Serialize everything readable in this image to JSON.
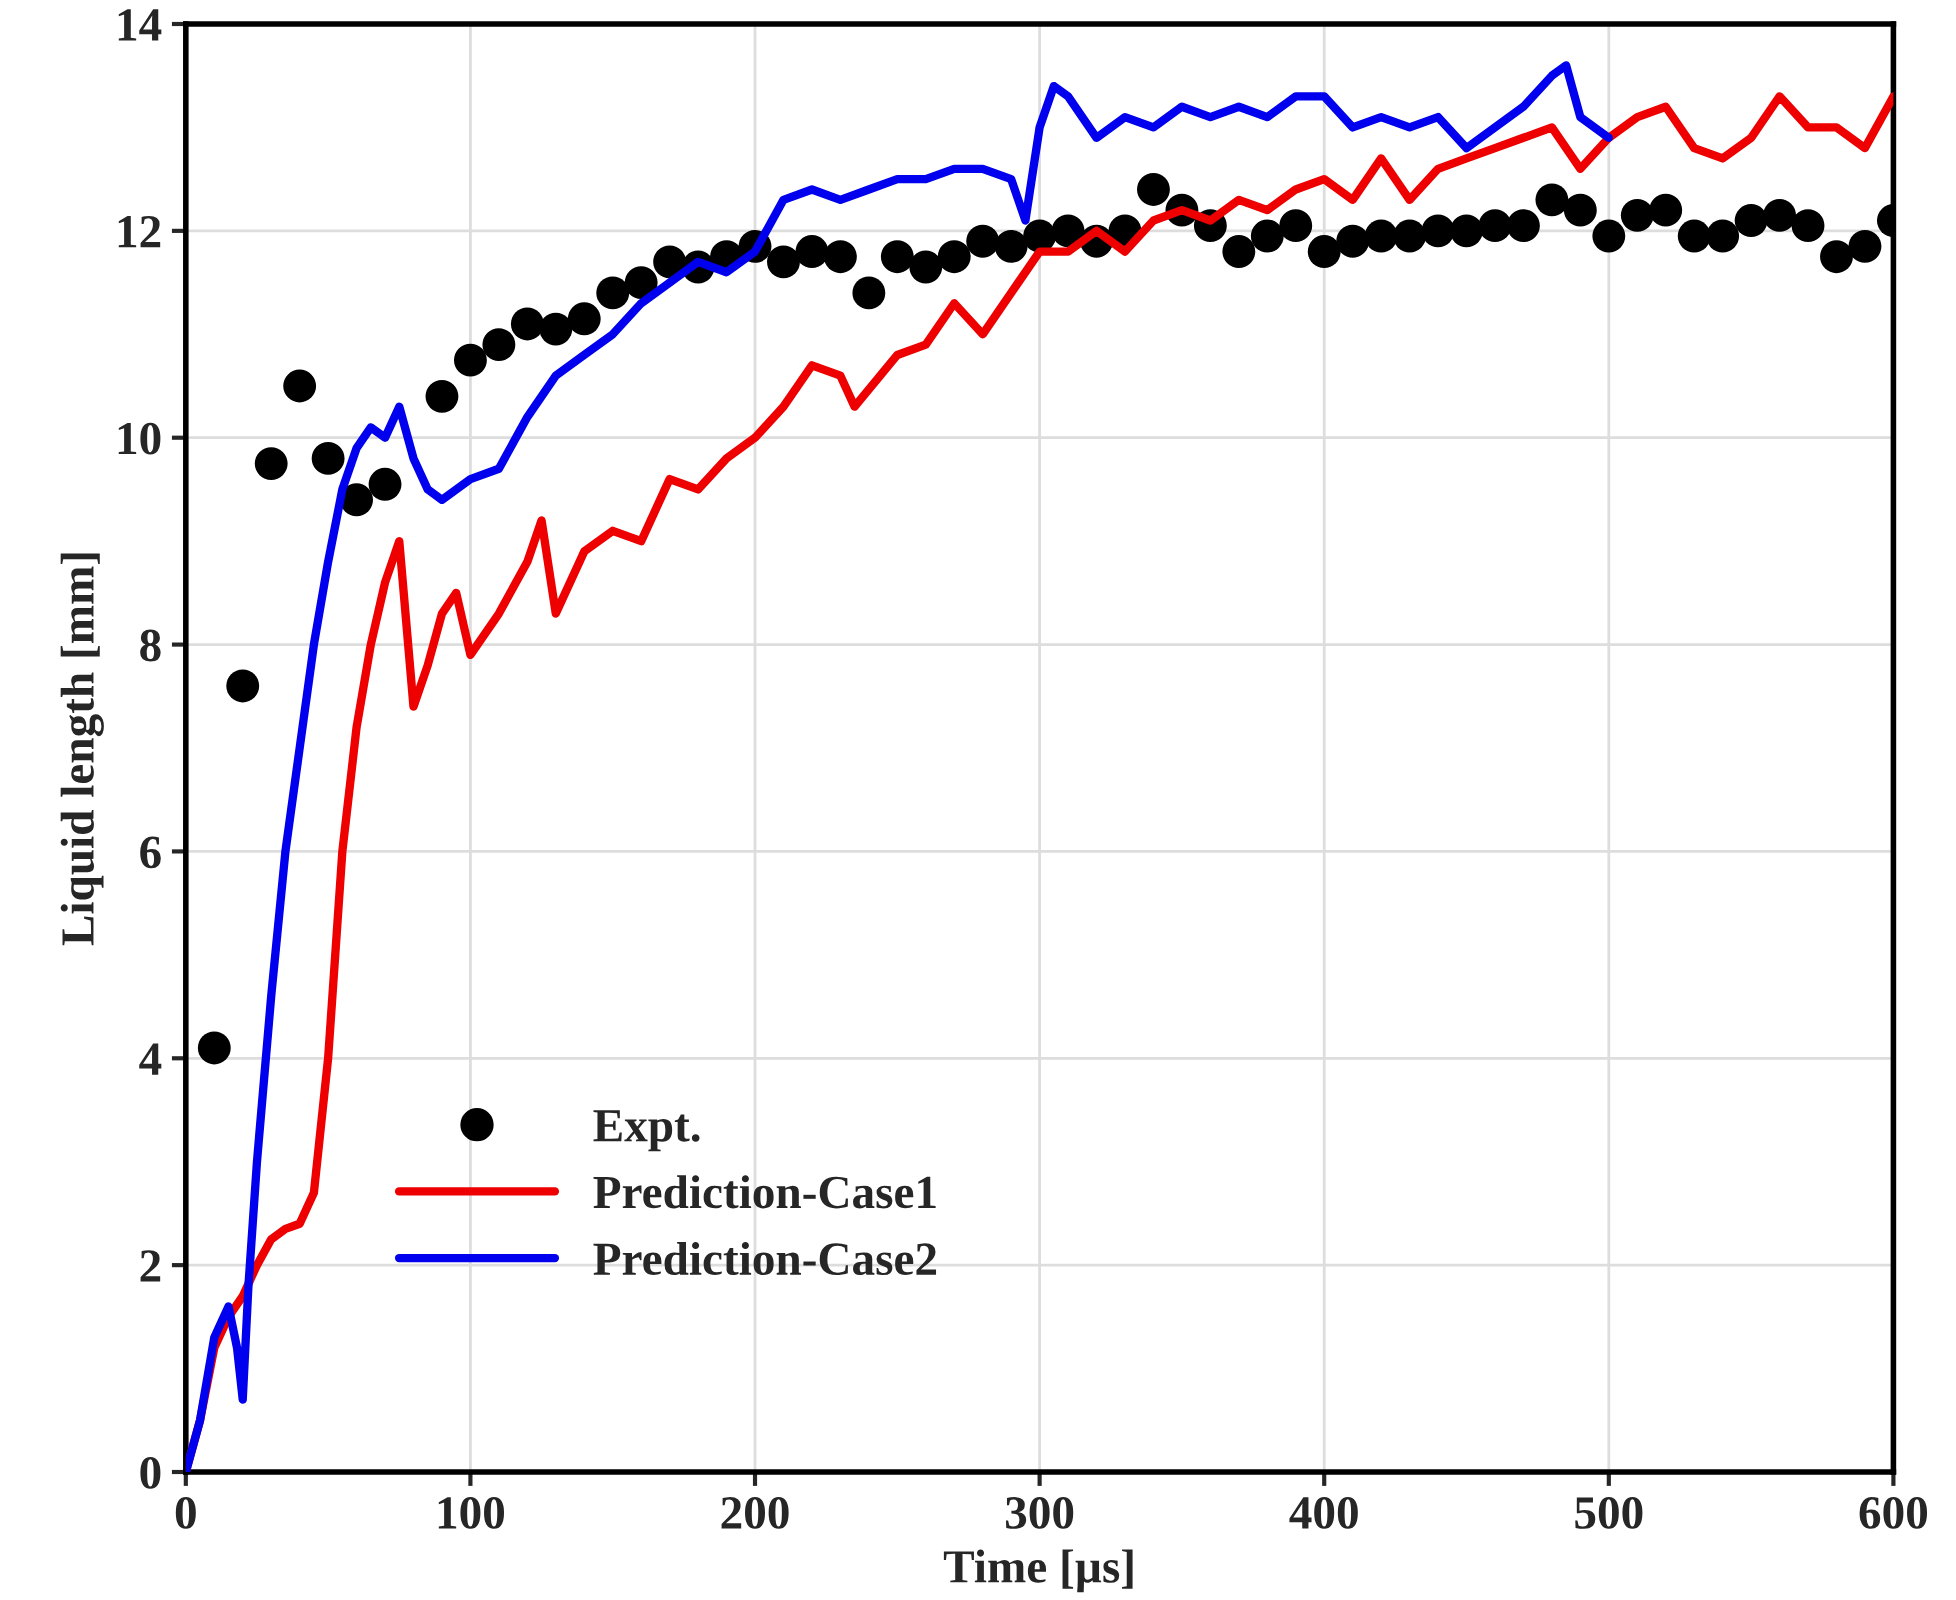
{
  "chart_data": {
    "type": "line",
    "xlabel": "Time [µs]",
    "ylabel": "Liquid length [mm]",
    "xlim": [
      0,
      600
    ],
    "xticks": [
      0,
      100,
      200,
      300,
      400,
      500,
      600
    ],
    "ylim": [
      0,
      14
    ],
    "yticks": [
      0,
      2,
      4,
      6,
      8,
      10,
      12,
      14
    ],
    "grid": true,
    "legend": "bottom left",
    "series": [
      {
        "name": "Expt.",
        "type": "scatter",
        "marker": "circle",
        "color": "#000000",
        "x": [
          10,
          20,
          30,
          40,
          50,
          60,
          70,
          90,
          100,
          110,
          120,
          130,
          140,
          150,
          160,
          170,
          180,
          190,
          200,
          210,
          220,
          230,
          240,
          250,
          260,
          270,
          280,
          290,
          300,
          310,
          320,
          330,
          340,
          350,
          360,
          370,
          380,
          390,
          400,
          410,
          420,
          430,
          440,
          450,
          460,
          470,
          480,
          490,
          500,
          510,
          520,
          530,
          540,
          550,
          560,
          570,
          580,
          590,
          600
        ],
        "values": [
          4.1,
          7.6,
          9.75,
          10.5,
          9.8,
          9.4,
          9.55,
          10.4,
          10.75,
          10.9,
          11.1,
          11.05,
          11.15,
          11.4,
          11.5,
          11.7,
          11.65,
          11.75,
          11.85,
          11.7,
          11.8,
          11.75,
          11.4,
          11.75,
          11.65,
          11.75,
          11.9,
          11.85,
          11.95,
          12.0,
          11.9,
          12.0,
          12.4,
          12.2,
          12.05,
          11.8,
          11.95,
          12.05,
          11.8,
          11.9,
          11.95,
          11.95,
          12.0,
          12.0,
          12.05,
          12.05,
          12.3,
          12.2,
          11.95,
          12.15,
          12.2,
          11.95,
          11.95,
          12.1,
          12.15,
          12.05,
          11.75,
          11.85,
          12.1
        ]
      },
      {
        "name": "Prediction-Case1",
        "color": "#ee0000",
        "x": [
          0,
          5,
          10,
          15,
          20,
          25,
          30,
          35,
          40,
          45,
          50,
          55,
          60,
          65,
          70,
          75,
          80,
          85,
          90,
          95,
          100,
          110,
          120,
          125,
          130,
          140,
          150,
          160,
          170,
          180,
          190,
          200,
          210,
          220,
          230,
          235,
          250,
          260,
          270,
          280,
          290,
          300,
          310,
          320,
          330,
          340,
          350,
          360,
          370,
          380,
          390,
          400,
          410,
          420,
          430,
          440,
          450,
          460,
          470,
          480,
          490,
          500,
          510,
          520,
          530,
          540,
          550,
          560,
          570,
          580,
          590,
          600
        ],
        "values": [
          0,
          0.5,
          1.2,
          1.5,
          1.7,
          2.0,
          2.25,
          2.35,
          2.4,
          2.7,
          4.0,
          6.0,
          7.2,
          8.0,
          8.6,
          9.0,
          7.4,
          7.8,
          8.3,
          8.5,
          7.9,
          8.3,
          8.8,
          9.2,
          8.3,
          8.9,
          9.1,
          9.0,
          9.6,
          9.5,
          9.8,
          10.0,
          10.3,
          10.7,
          10.6,
          10.3,
          10.8,
          10.9,
          11.3,
          11.0,
          11.4,
          11.8,
          11.8,
          12.0,
          11.8,
          12.1,
          12.2,
          12.1,
          12.3,
          12.2,
          12.4,
          12.5,
          12.3,
          12.7,
          12.3,
          12.6,
          12.7,
          12.8,
          12.9,
          13.0,
          12.6,
          12.9,
          13.1,
          13.2,
          12.8,
          12.7,
          12.9,
          13.3,
          13.0,
          13.0,
          12.8,
          13.3
        ]
      },
      {
        "name": "Prediction-Case2",
        "color": "#0000ee",
        "x": [
          0,
          5,
          10,
          15,
          18,
          20,
          22,
          25,
          30,
          35,
          40,
          45,
          50,
          55,
          60,
          65,
          70,
          75,
          80,
          85,
          90,
          100,
          110,
          120,
          130,
          140,
          150,
          160,
          170,
          180,
          190,
          200,
          210,
          220,
          230,
          240,
          250,
          260,
          270,
          280,
          290,
          295,
          300,
          305,
          310,
          320,
          330,
          340,
          350,
          360,
          370,
          380,
          390,
          400,
          410,
          420,
          430,
          440,
          450,
          460,
          470,
          480,
          485,
          490,
          500
        ],
        "values": [
          0,
          0.5,
          1.3,
          1.6,
          1.2,
          0.7,
          1.8,
          3.0,
          4.6,
          6.0,
          7.0,
          8.0,
          8.8,
          9.5,
          9.9,
          10.1,
          10.0,
          10.3,
          9.8,
          9.5,
          9.4,
          9.6,
          9.7,
          10.2,
          10.6,
          10.8,
          11.0,
          11.3,
          11.5,
          11.7,
          11.6,
          11.8,
          12.3,
          12.4,
          12.3,
          12.4,
          12.5,
          12.5,
          12.6,
          12.6,
          12.5,
          12.1,
          13.0,
          13.4,
          13.3,
          12.9,
          13.1,
          13.0,
          13.2,
          13.1,
          13.2,
          13.1,
          13.3,
          13.3,
          13.0,
          13.1,
          13.0,
          13.1,
          12.8,
          13.0,
          13.2,
          13.5,
          13.6,
          13.1,
          12.9
        ]
      }
    ]
  }
}
